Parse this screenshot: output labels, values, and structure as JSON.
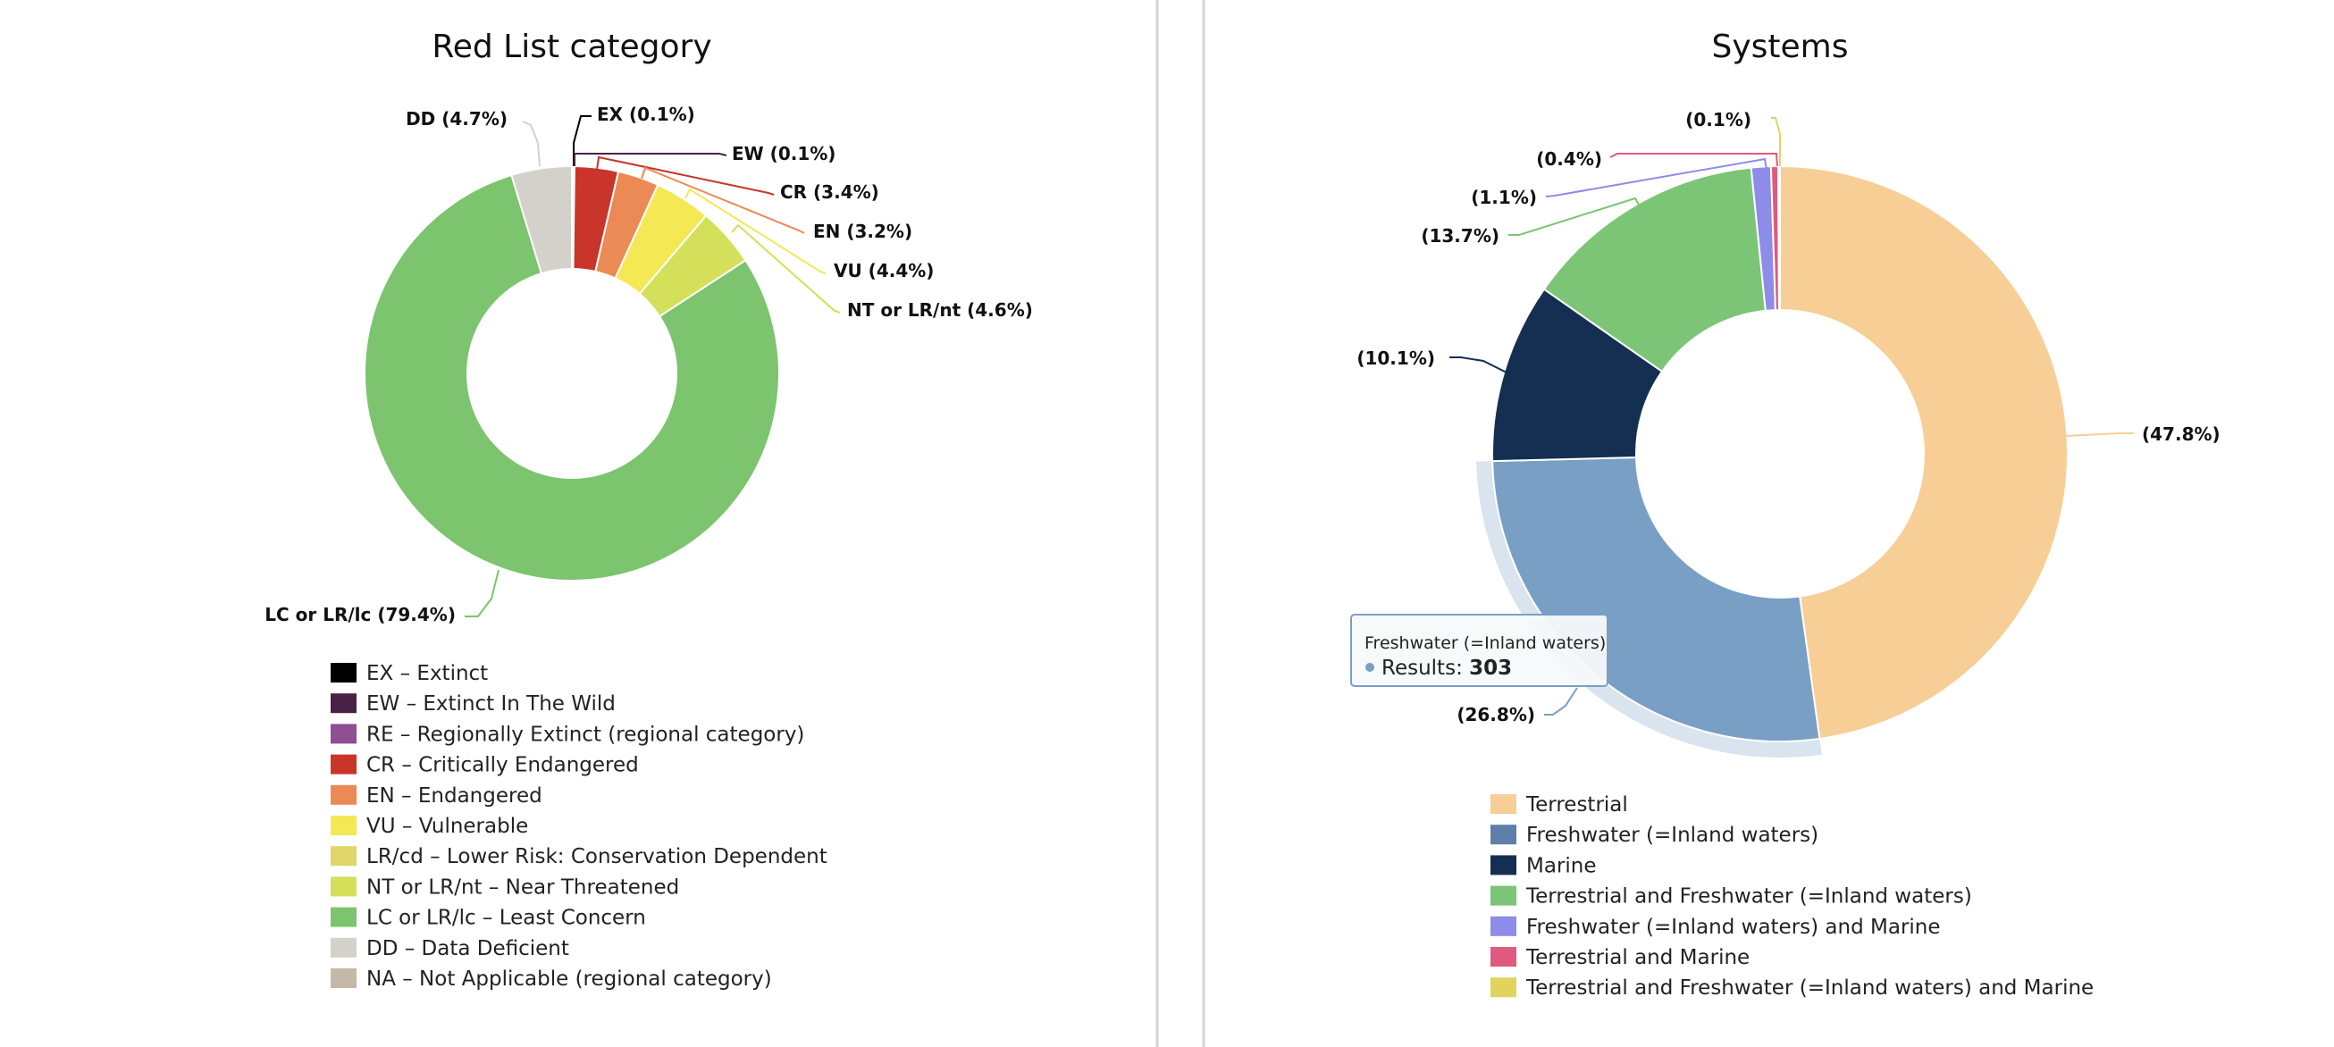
{
  "chart_data": [
    {
      "type": "pie",
      "variant": "donut",
      "title": "Red List category",
      "categories": [
        "EX",
        "EW",
        "CR",
        "EN",
        "VU",
        "NT or LR/nt",
        "LC or LR/lc",
        "DD"
      ],
      "values": [
        0.1,
        0.1,
        3.4,
        3.2,
        4.4,
        4.6,
        79.4,
        4.7
      ],
      "slice_labels": [
        "EX (0.1%)",
        "EW (0.1%)",
        "CR (3.4%)",
        "EN (3.2%)",
        "VU (4.4%)",
        "NT or LR/nt (4.6%)",
        "LC or LR/lc (79.4%)",
        "DD (4.7%)"
      ],
      "colors": [
        "#000000",
        "#4a2146",
        "#c9352a",
        "#ec8a55",
        "#f4e855",
        "#d4e05a",
        "#7cc46e",
        "#d3d1c9"
      ],
      "legend": [
        {
          "label": "EX – Extinct",
          "color": "#000000"
        },
        {
          "label": "EW – Extinct In The Wild",
          "color": "#4a2146"
        },
        {
          "label": "RE – Regionally Extinct (regional category)",
          "color": "#8e4f93"
        },
        {
          "label": "CR – Critically Endangered",
          "color": "#c9352a"
        },
        {
          "label": "EN – Endangered",
          "color": "#ec8a55"
        },
        {
          "label": "VU – Vulnerable",
          "color": "#f4e855"
        },
        {
          "label": "LR/cd – Lower Risk: Conservation Dependent",
          "color": "#e0d56a"
        },
        {
          "label": "NT or LR/nt – Near Threatened",
          "color": "#d4e05a"
        },
        {
          "label": "LC or LR/lc – Least Concern",
          "color": "#7cc46e"
        },
        {
          "label": "DD – Data Deficient",
          "color": "#d3d1c9"
        },
        {
          "label": "NA – Not Applicable (regional category)",
          "color": "#c4b9a6"
        }
      ],
      "legend_position": "bottom"
    },
    {
      "type": "pie",
      "variant": "donut",
      "title": "Systems",
      "categories": [
        "Terrestrial",
        "Freshwater (=Inland waters)",
        "Marine",
        "Terrestrial and Freshwater (=Inland waters)",
        "Freshwater (=Inland waters) and Marine",
        "Terrestrial and Marine",
        "Terrestrial and Freshwater (=Inland waters) and Marine"
      ],
      "values": [
        47.8,
        26.8,
        10.1,
        13.7,
        1.1,
        0.4,
        0.1
      ],
      "slice_labels": [
        "(47.8%)",
        "(26.8%)",
        "(10.1%)",
        "(13.7%)",
        "(1.1%)",
        "(0.4%)",
        "(0.1%)"
      ],
      "colors": [
        "#f7cf96",
        "#7a9fc5",
        "#152f52",
        "#7cc576",
        "#8d8ce8",
        "#de5a7e",
        "#e0d45e"
      ],
      "legend": [
        {
          "label": "Terrestrial",
          "color": "#f7cf96"
        },
        {
          "label": "Freshwater (=Inland waters)",
          "color": "#5f7ea9"
        },
        {
          "label": "Marine",
          "color": "#152f52"
        },
        {
          "label": "Terrestrial and Freshwater (=Inland waters)",
          "color": "#7cc576"
        },
        {
          "label": "Freshwater (=Inland waters) and Marine",
          "color": "#8d8ce8"
        },
        {
          "label": "Terrestrial and Marine",
          "color": "#de5a7e"
        },
        {
          "label": "Terrestrial and Freshwater (=Inland waters) and Marine",
          "color": "#e0d45e"
        }
      ],
      "legend_position": "bottom",
      "highlighted_slice": "Freshwater (=Inland waters)",
      "tooltip": {
        "title": "Freshwater (=Inland waters)",
        "series_label": "Results",
        "value": "303"
      }
    }
  ]
}
